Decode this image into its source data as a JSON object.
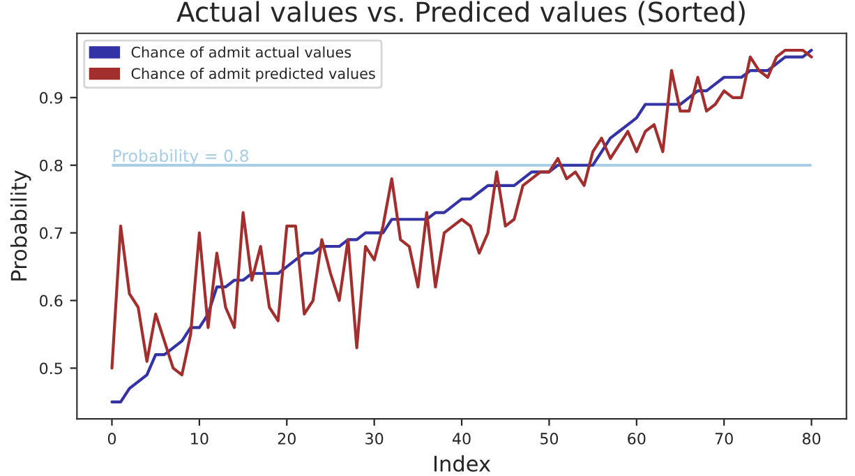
{
  "chart_data": {
    "type": "line",
    "title": "Actual values vs. Prediced values (Sorted)",
    "xlabel": "Index",
    "ylabel": "Probability",
    "x": [
      0,
      1,
      2,
      3,
      4,
      5,
      6,
      7,
      8,
      9,
      10,
      11,
      12,
      13,
      14,
      15,
      16,
      17,
      18,
      19,
      20,
      21,
      22,
      23,
      24,
      25,
      26,
      27,
      28,
      29,
      30,
      31,
      32,
      33,
      34,
      35,
      36,
      37,
      38,
      39,
      40,
      41,
      42,
      43,
      44,
      45,
      46,
      47,
      48,
      49,
      50,
      51,
      52,
      53,
      54,
      55,
      56,
      57,
      58,
      59,
      60,
      61,
      62,
      63,
      64,
      65,
      66,
      67,
      68,
      69,
      70,
      71,
      72,
      73,
      74,
      75,
      76,
      77,
      78,
      79,
      80
    ],
    "series": [
      {
        "name": "Chance of admit actual values",
        "color": "#3333a6",
        "values": [
          0.45,
          0.45,
          0.47,
          0.48,
          0.49,
          0.52,
          0.52,
          0.53,
          0.54,
          0.56,
          0.56,
          0.58,
          0.62,
          0.62,
          0.63,
          0.63,
          0.64,
          0.64,
          0.64,
          0.64,
          0.65,
          0.66,
          0.67,
          0.67,
          0.68,
          0.68,
          0.68,
          0.69,
          0.69,
          0.7,
          0.7,
          0.7,
          0.72,
          0.72,
          0.72,
          0.72,
          0.72,
          0.73,
          0.73,
          0.74,
          0.75,
          0.75,
          0.76,
          0.77,
          0.77,
          0.77,
          0.77,
          0.78,
          0.79,
          0.79,
          0.79,
          0.8,
          0.8,
          0.8,
          0.8,
          0.8,
          0.82,
          0.84,
          0.85,
          0.86,
          0.87,
          0.89,
          0.89,
          0.89,
          0.89,
          0.89,
          0.9,
          0.91,
          0.91,
          0.92,
          0.93,
          0.93,
          0.93,
          0.94,
          0.94,
          0.94,
          0.95,
          0.96,
          0.96,
          0.96,
          0.97
        ]
      },
      {
        "name": "Chance of admit predicted values",
        "color": "#a22e2e",
        "values": [
          0.5,
          0.71,
          0.61,
          0.59,
          0.51,
          0.58,
          0.54,
          0.5,
          0.49,
          0.55,
          0.7,
          0.56,
          0.67,
          0.59,
          0.56,
          0.73,
          0.63,
          0.68,
          0.59,
          0.57,
          0.71,
          0.71,
          0.58,
          0.6,
          0.69,
          0.64,
          0.6,
          0.69,
          0.53,
          0.68,
          0.66,
          0.71,
          0.78,
          0.69,
          0.68,
          0.62,
          0.73,
          0.62,
          0.7,
          0.71,
          0.72,
          0.71,
          0.67,
          0.7,
          0.79,
          0.71,
          0.72,
          0.77,
          0.78,
          0.79,
          0.79,
          0.81,
          0.78,
          0.79,
          0.77,
          0.82,
          0.84,
          0.81,
          0.83,
          0.85,
          0.82,
          0.85,
          0.86,
          0.82,
          0.94,
          0.88,
          0.88,
          0.93,
          0.88,
          0.89,
          0.91,
          0.9,
          0.9,
          0.96,
          0.94,
          0.93,
          0.96,
          0.97,
          0.97,
          0.97,
          0.96
        ]
      }
    ],
    "ref_lines": [
      {
        "axis": "y",
        "value": 0.8,
        "label": "Probability = 0.8",
        "color": "#a6cde3"
      }
    ],
    "xlim": [
      -4,
      84
    ],
    "xticks": [
      0,
      10,
      20,
      30,
      40,
      50,
      60,
      70,
      80
    ],
    "ylim": [
      0.425,
      0.995
    ],
    "yticks": [
      0.5,
      0.6,
      0.7,
      0.8,
      0.9
    ],
    "legend": "top left",
    "grid": false
  }
}
